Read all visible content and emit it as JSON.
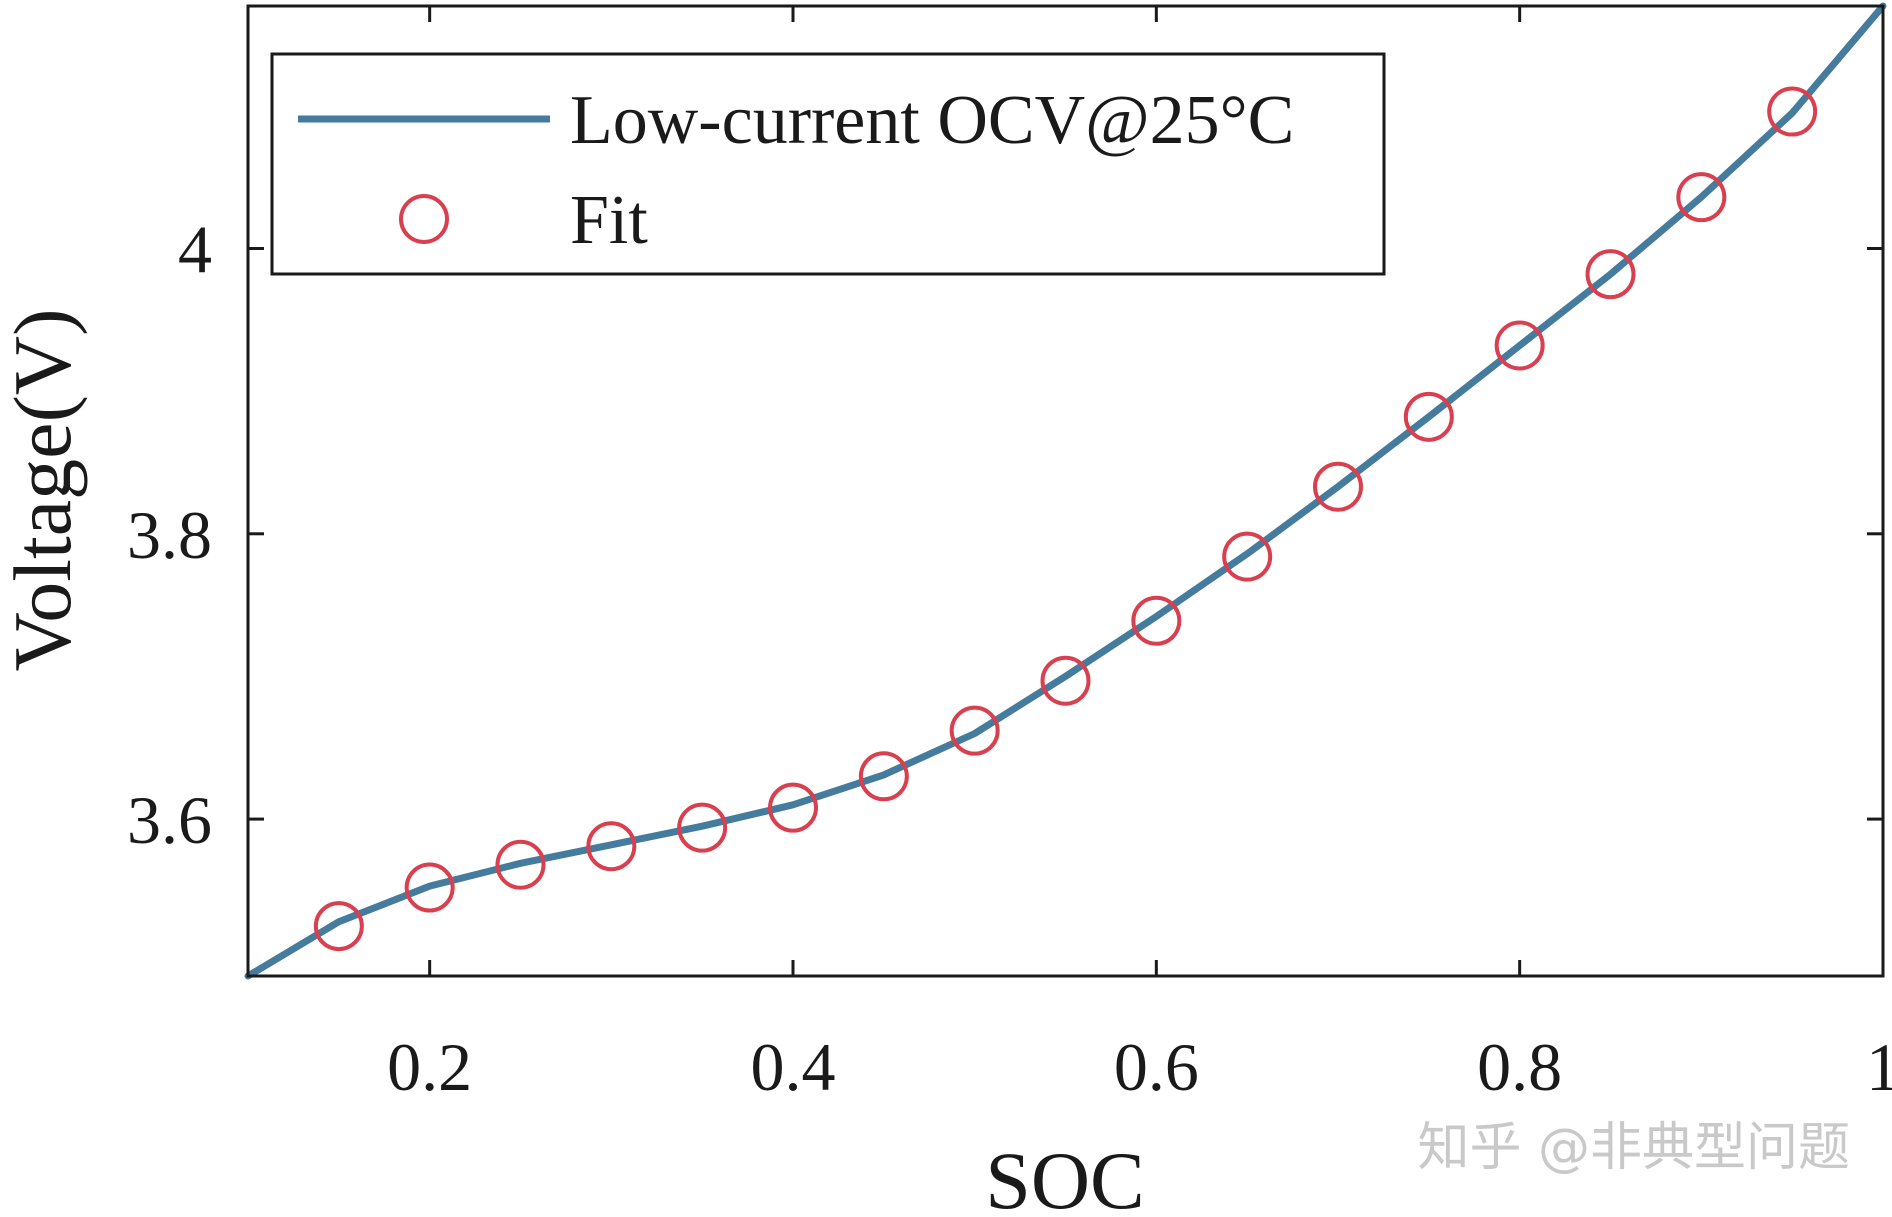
{
  "chart_data": {
    "type": "line",
    "title": "",
    "xlabel": "SOC",
    "ylabel": "Voltage(V)",
    "xlim": [
      0.1,
      1.0
    ],
    "ylim": [
      3.49,
      4.17
    ],
    "xticks": [
      0.2,
      0.4,
      0.6,
      0.8,
      1.0
    ],
    "xtick_labels": [
      "0.2",
      "0.4",
      "0.6",
      "0.8",
      "1"
    ],
    "yticks": [
      3.6,
      3.8,
      4.0
    ],
    "ytick_labels": [
      "3.6",
      "3.8",
      "4"
    ],
    "grid": false,
    "legend_position": "top-left",
    "series": [
      {
        "name": "Low-current OCV@25°C",
        "style": "line",
        "color": "#457b9d",
        "x": [
          0.1,
          0.15,
          0.2,
          0.25,
          0.3,
          0.35,
          0.4,
          0.45,
          0.5,
          0.55,
          0.6,
          0.65,
          0.7,
          0.75,
          0.8,
          0.85,
          0.9,
          0.95,
          1.0
        ],
        "y": [
          3.49,
          3.528,
          3.553,
          3.569,
          3.582,
          3.595,
          3.61,
          3.631,
          3.66,
          3.7,
          3.742,
          3.786,
          3.833,
          3.882,
          3.932,
          3.982,
          4.036,
          4.095,
          4.17
        ]
      },
      {
        "name": "Fit",
        "style": "marker-circle",
        "color": "#d9404f",
        "x": [
          0.15,
          0.2,
          0.25,
          0.3,
          0.35,
          0.4,
          0.45,
          0.5,
          0.55,
          0.6,
          0.65,
          0.7,
          0.75,
          0.8,
          0.85,
          0.9,
          0.95
        ],
        "y": [
          3.525,
          3.552,
          3.568,
          3.581,
          3.594,
          3.608,
          3.63,
          3.662,
          3.697,
          3.739,
          3.784,
          3.833,
          3.882,
          3.932,
          3.982,
          4.036,
          4.096
        ]
      }
    ]
  },
  "watermark": "知乎 @非典型问题"
}
